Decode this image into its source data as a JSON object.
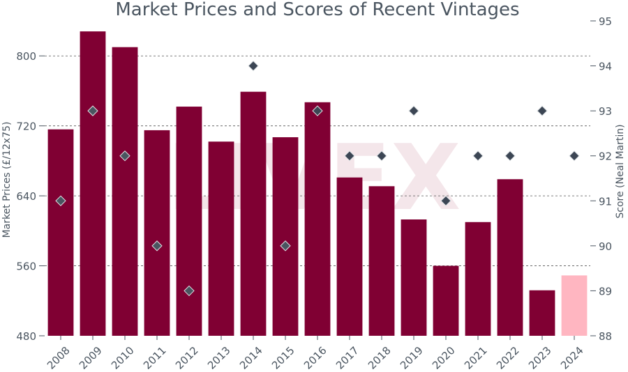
{
  "chart_data": {
    "type": "bar",
    "title": "Market Prices and Scores of Recent Vintages",
    "watermark": "LIVEX",
    "ylabel": "Market Prices (£/12x75)",
    "y2label": "Score (Neal Martin)",
    "ylim": [
      480,
      840
    ],
    "y2lim": [
      88,
      95
    ],
    "yticks": [
      480,
      560,
      640,
      720,
      800
    ],
    "y2ticks": [
      88,
      89,
      90,
      91,
      92,
      93,
      94,
      95
    ],
    "categories": [
      "2008",
      "2009",
      "2010",
      "2011",
      "2012",
      "2013",
      "2014",
      "2015",
      "2016",
      "2017",
      "2018",
      "2019",
      "2020",
      "2021",
      "2022",
      "2023",
      "2024"
    ],
    "series": [
      {
        "kind": "bar",
        "axis": "left",
        "values": [
          716,
          828,
          810,
          715,
          742,
          702,
          759,
          707,
          747,
          661,
          651,
          613,
          560,
          610,
          659,
          532,
          549
        ],
        "colors": [
          "#800033",
          "#800033",
          "#800033",
          "#800033",
          "#800033",
          "#800033",
          "#800033",
          "#800033",
          "#800033",
          "#800033",
          "#800033",
          "#800033",
          "#800033",
          "#800033",
          "#800033",
          "#800033",
          "#ffb6c1"
        ]
      },
      {
        "kind": "scatter",
        "axis": "right",
        "marker": "diamond",
        "values": [
          91,
          93,
          92,
          90,
          89,
          null,
          94,
          90,
          93,
          92,
          92,
          93,
          91,
          92,
          92,
          93,
          92
        ],
        "colors": [
          "#4a5560",
          "#4a5560",
          "#4a5560",
          "#4a5560",
          "#4a5560",
          null,
          "#3c4654",
          "#4a5560",
          "#3c4654",
          "#3c4654",
          "#3c4654",
          "#3c4654",
          "#3c4654",
          "#3c4654",
          "#3c4654",
          "#3c4654",
          "#3c4654"
        ]
      }
    ],
    "grid": "dashed horizontal at left-axis ticks",
    "colors": {
      "bar": "#800033",
      "bar_highlight": "#ffb6c1",
      "text": "#4a5560",
      "grid": "#555555"
    }
  }
}
